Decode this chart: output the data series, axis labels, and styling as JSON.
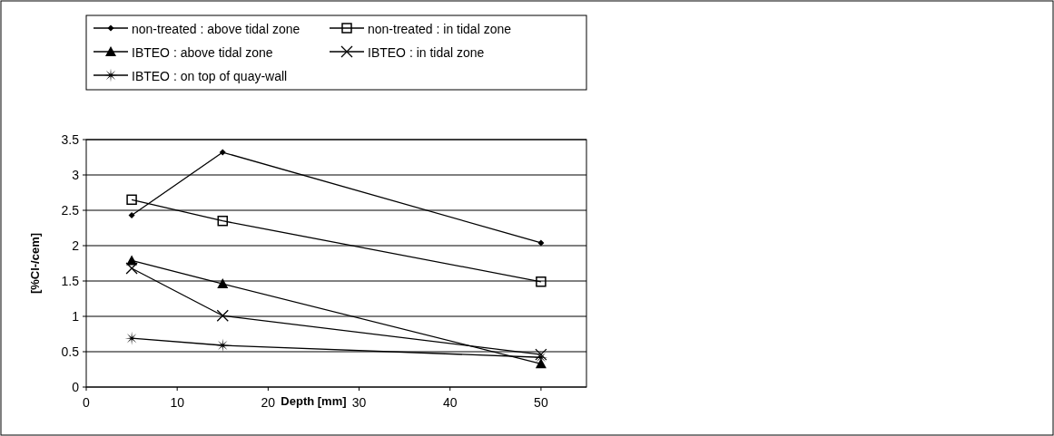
{
  "chart_data": {
    "type": "line",
    "xlabel": "Depth [mm]",
    "ylabel": "[%Cl-/cem]",
    "x": [
      5,
      15,
      50
    ],
    "series": [
      {
        "name": "non-treated : above tidal zone",
        "color": "#000000",
        "marker": "diamond",
        "values": [
          2.43,
          3.32,
          2.04
        ]
      },
      {
        "name": "non-treated : in tidal zone",
        "color": "#000000",
        "marker": "square",
        "values": [
          2.65,
          2.35,
          1.49
        ]
      },
      {
        "name": "IBTEO : above tidal zone",
        "color": "#000000",
        "marker": "triangle",
        "values": [
          1.79,
          1.46,
          0.33
        ]
      },
      {
        "name": "IBTEO : in tidal zone",
        "color": "#000000",
        "marker": "cross",
        "values": [
          1.68,
          1.01,
          0.46
        ]
      },
      {
        "name": "IBTEO : on top of quay-wall",
        "color": "#000000",
        "marker": "star",
        "values": [
          0.69,
          0.59,
          0.42
        ]
      }
    ],
    "xlim": [
      0,
      55
    ],
    "xticks": [
      0,
      10,
      20,
      30,
      40,
      50
    ],
    "ylim": [
      0,
      3.5
    ],
    "yticks": [
      0,
      0.5,
      1,
      1.5,
      2,
      2.5,
      3,
      3.5
    ],
    "grid": "y",
    "legend": "top",
    "line_style": "solid"
  }
}
